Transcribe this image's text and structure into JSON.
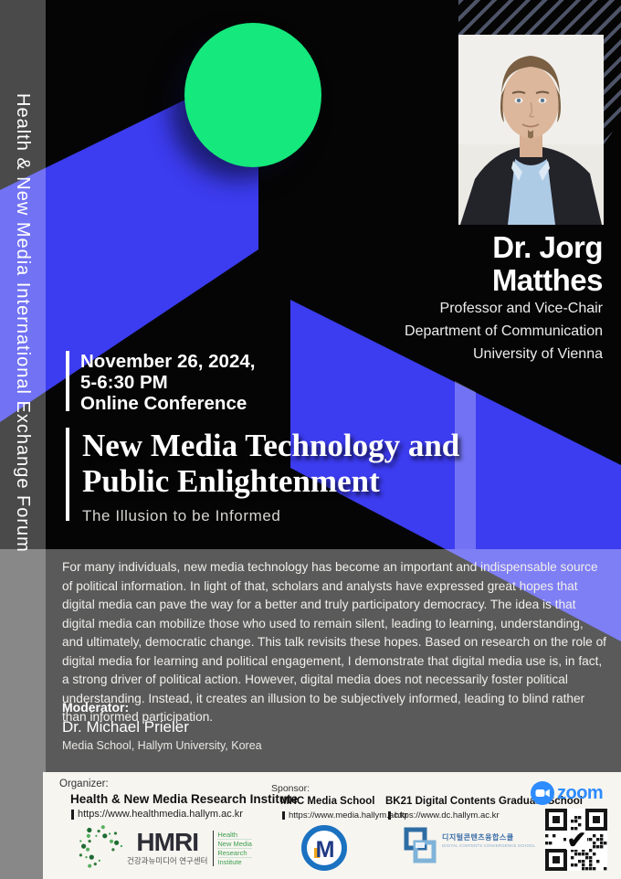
{
  "sidebar": {
    "title": "Health & New Media International Exchange Forum"
  },
  "speaker": {
    "name_line1": "Dr. Jorg",
    "name_line2": "Matthes",
    "credentials": [
      "Professor and Vice-Chair",
      "Department of Communication",
      "University of Vienna"
    ]
  },
  "event": {
    "date": "November 26, 2024,",
    "time": "5-6:30 PM",
    "mode": "Online Conference"
  },
  "talk": {
    "title_line1": "New Media Technology and",
    "title_line2": "Public Enlightenment",
    "subtitle": "The Illusion to be Informed"
  },
  "abstract": "For many individuals, new media technology has become an important and indispensable source of political information. In light of that, scholars and analysts have expressed great hopes that digital media can pave the way for a better and truly participatory democracy. The idea is that digital media can mobilize those who used to remain silent, leading to learning, understanding, and ultimately, democratic change. This talk revisits these hopes. Based on research on the role of digital media for learning and political engagement, I demonstrate that digital media use is, in fact, a strong driver of political action. However, digital media does not necessarily foster political understanding. Instead, it creates an illusion to be subjectively informed, leading to blind rather than informed participation.",
  "moderator": {
    "label": "Moderator:",
    "name": "Dr. Michael Prieler",
    "affiliation": "Media School, Hallym University, Korea"
  },
  "footer": {
    "organizer_label": "Organizer:",
    "organizer_name": "Health & New Media Research Institute",
    "organizer_url": "https://www.healthmedia.hallym.ac.kr",
    "hmri_acronym": "HMRI",
    "hmri_korean": "건강과뉴미디어 연구센터",
    "hmri_words": [
      "Health",
      "New Media",
      "Research",
      "Institute"
    ],
    "sponsor_label": "Sponsor:",
    "sponsors": [
      {
        "name": "MHC Media School",
        "url": "https://www.media.hallym.ac.kr"
      },
      {
        "name": "BK21 Digital Contents Graduate School",
        "url": "https://www.dc.hallym.ac.kr"
      }
    ],
    "bk21_korean": "디지털콘텐츠융합스쿨",
    "bk21_caption": "DIGITAL CONTENTS CONVERGENCE SCHOOL",
    "zoom_wordmark": "zoom"
  },
  "colors": {
    "accent_blue": "#3c3cf0",
    "accent_green": "#15e87c",
    "zoom_blue": "#2D8CFF",
    "hmri_green": "#3d9e4f",
    "bk21_blue": "#2e6da4"
  }
}
